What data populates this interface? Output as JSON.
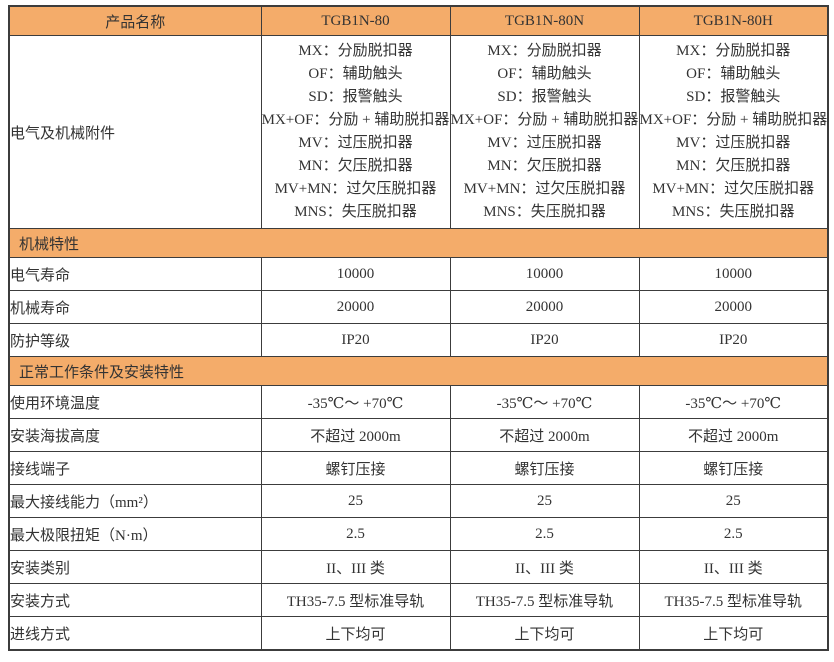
{
  "colors": {
    "accent_orange": "#f4ac6a",
    "band_text": "#f7f1e8",
    "grid_border": "#3c3c3c",
    "cell_text": "#333333",
    "background": "#ffffff"
  },
  "header": {
    "label": "产品名称",
    "columns": [
      "TGB1N-80",
      "TGB1N-80N",
      "TGB1N-80H"
    ]
  },
  "accessories": {
    "label": "电气及机械附件",
    "items": [
      "MX：分励脱扣器",
      "OF：辅助触头",
      "SD：报警触头",
      "MX+OF：分励 + 辅助脱扣器",
      "MV：过压脱扣器",
      "MN：欠压脱扣器",
      "MV+MN：过欠压脱扣器",
      "MNS：失压脱扣器"
    ]
  },
  "sections": [
    {
      "title": "机械特性",
      "rows": [
        {
          "label": "电气寿命",
          "values": [
            "10000",
            "10000",
            "10000"
          ]
        },
        {
          "label": "机械寿命",
          "values": [
            "20000",
            "20000",
            "20000"
          ]
        },
        {
          "label": "防护等级",
          "values": [
            "IP20",
            "IP20",
            "IP20"
          ]
        }
      ]
    },
    {
      "title": "正常工作条件及安装特性",
      "rows": [
        {
          "label": "使用环境温度",
          "values": [
            "-35℃～ +70℃",
            "-35℃～ +70℃",
            "-35℃～ +70℃"
          ]
        },
        {
          "label": "安装海拔高度",
          "values": [
            "不超过 2000m",
            "不超过 2000m",
            "不超过 2000m"
          ]
        },
        {
          "label": "接线端子",
          "values": [
            "螺钉压接",
            "螺钉压接",
            "螺钉压接"
          ]
        },
        {
          "label": "最大接线能力（mm²）",
          "values": [
            "25",
            "25",
            "25"
          ]
        },
        {
          "label": "最大极限扭矩（N·m）",
          "values": [
            "2.5",
            "2.5",
            "2.5"
          ]
        },
        {
          "label": "安装类别",
          "values": [
            "II、III 类",
            "II、III 类",
            "II、III 类"
          ]
        },
        {
          "label": "安装方式",
          "values": [
            "TH35-7.5 型标准导轨",
            "TH35-7.5 型标准导轨",
            "TH35-7.5 型标准导轨"
          ]
        },
        {
          "label": "进线方式",
          "values": [
            "上下均可",
            "上下均可",
            "上下均可"
          ]
        }
      ]
    }
  ]
}
